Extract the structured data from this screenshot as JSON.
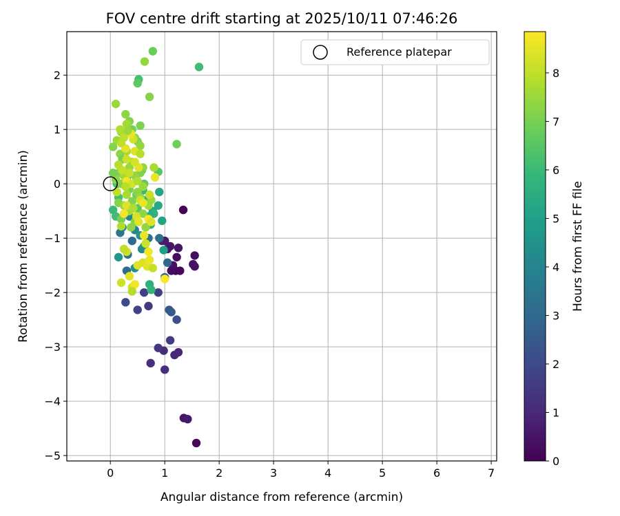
{
  "chart_data": {
    "type": "scatter",
    "title": "FOV centre drift starting at 2025/10/11 07:46:26",
    "xlabel": "Angular distance from reference (arcmin)",
    "ylabel": "Rotation from reference (arcmin)",
    "xlim": [
      -0.8,
      7.1
    ],
    "ylim": [
      -5.1,
      2.8
    ],
    "xticks": [
      0,
      1,
      2,
      3,
      4,
      5,
      6,
      7
    ],
    "yticks": [
      -5,
      -4,
      -3,
      -2,
      -1,
      0,
      1,
      2
    ],
    "grid": true,
    "legend": {
      "position": "top-right",
      "label": "Reference platepar"
    },
    "reference_point": {
      "x": 0,
      "y": 0
    },
    "colorbar": {
      "label": "Hours from first FF file",
      "range": [
        0,
        8.85
      ],
      "ticks": [
        0,
        1,
        2,
        3,
        4,
        5,
        6,
        7,
        8
      ],
      "colormap": "viridis"
    },
    "colors": {
      "viridis": [
        "#440154",
        "#482878",
        "#3e4989",
        "#31688e",
        "#26828e",
        "#1f9e89",
        "#35b779",
        "#6ece58",
        "#b5de2b",
        "#fde725"
      ]
    },
    "points": [
      [
        1.58,
        -4.77,
        0.2
      ],
      [
        1.35,
        -4.31,
        0.5
      ],
      [
        1.42,
        -4.33,
        0.6
      ],
      [
        1.34,
        -0.48,
        0.1
      ],
      [
        1.55,
        -1.32,
        0.3
      ],
      [
        1.52,
        -1.48,
        0.4
      ],
      [
        1.55,
        -1.52,
        0.4
      ],
      [
        1.25,
        -1.18,
        0.5
      ],
      [
        1.22,
        -1.35,
        0.3
      ],
      [
        1.28,
        -1.6,
        0.2
      ],
      [
        1.2,
        -1.6,
        0.2
      ],
      [
        1.1,
        -1.15,
        0.6
      ],
      [
        1.0,
        -1.05,
        0.6
      ],
      [
        0.95,
        -1.05,
        0.7
      ],
      [
        1.05,
        -1.2,
        0.5
      ],
      [
        1.15,
        -1.5,
        0.4
      ],
      [
        1.12,
        -1.6,
        0.3
      ],
      [
        1.25,
        -3.1,
        0.9
      ],
      [
        1.18,
        -3.15,
        1.0
      ],
      [
        1.0,
        -3.42,
        1.2
      ],
      [
        0.98,
        -3.07,
        1.1
      ],
      [
        0.88,
        -3.02,
        1.4
      ],
      [
        0.74,
        -3.3,
        1.2
      ],
      [
        1.1,
        -2.88,
        1.6
      ],
      [
        0.88,
        -2.0,
        1.7
      ],
      [
        0.7,
        -2.25,
        1.5
      ],
      [
        0.62,
        -2.0,
        1.7
      ],
      [
        0.5,
        -2.32,
        1.8
      ],
      [
        0.28,
        -2.18,
        2.0
      ],
      [
        1.22,
        -2.5,
        2.2
      ],
      [
        1.08,
        -2.32,
        2.4
      ],
      [
        1.12,
        -2.36,
        2.5
      ],
      [
        1.0,
        -1.72,
        2.7
      ],
      [
        1.05,
        -1.45,
        3.0
      ],
      [
        0.9,
        -1.0,
        3.2
      ],
      [
        0.7,
        -1.0,
        3.3
      ],
      [
        0.4,
        -1.05,
        3.0
      ],
      [
        0.3,
        -1.6,
        3.1
      ],
      [
        0.32,
        -1.3,
        3.4
      ],
      [
        0.18,
        -0.9,
        3.5
      ],
      [
        0.22,
        -0.8,
        3.8
      ],
      [
        0.45,
        -0.85,
        4.0
      ],
      [
        0.35,
        -0.6,
        4.1
      ],
      [
        0.58,
        -1.2,
        4.2
      ],
      [
        0.45,
        -1.55,
        4.4
      ],
      [
        0.62,
        -1.15,
        4.5
      ],
      [
        0.55,
        -0.95,
        4.6
      ],
      [
        0.15,
        -1.35,
        4.7
      ],
      [
        0.98,
        -1.22,
        4.9
      ],
      [
        0.95,
        -0.68,
        5.1
      ],
      [
        0.9,
        -0.15,
        5.2
      ],
      [
        0.88,
        -0.4,
        5.3
      ],
      [
        0.78,
        -0.5,
        5.4
      ],
      [
        0.7,
        -0.6,
        5.5
      ],
      [
        0.74,
        -0.75,
        5.6
      ],
      [
        0.8,
        -0.55,
        5.7
      ],
      [
        0.65,
        -0.3,
        5.8
      ],
      [
        0.6,
        -0.12,
        5.9
      ],
      [
        0.72,
        -1.85,
        5.6
      ],
      [
        0.75,
        -1.95,
        5.8
      ],
      [
        0.05,
        -0.48,
        6.0
      ],
      [
        0.1,
        -0.6,
        6.1
      ],
      [
        0.15,
        -0.25,
        6.2
      ],
      [
        0.12,
        0.0,
        6.3
      ],
      [
        0.3,
        0.1,
        6.4
      ],
      [
        0.5,
        -0.45,
        6.5
      ],
      [
        0.62,
        0.0,
        6.6
      ],
      [
        0.58,
        0.25,
        6.7
      ],
      [
        0.48,
        -0.2,
        6.8
      ],
      [
        0.52,
        1.92,
        6.2
      ],
      [
        0.78,
        2.44,
        6.8
      ],
      [
        1.63,
        2.15,
        6.1
      ],
      [
        0.5,
        1.85,
        6.6
      ],
      [
        0.88,
        0.22,
        6.5
      ],
      [
        1.22,
        0.73,
        6.9
      ],
      [
        0.72,
        1.6,
        7.2
      ],
      [
        0.63,
        2.25,
        7.4
      ],
      [
        0.1,
        1.47,
        7.5
      ],
      [
        0.28,
        1.28,
        7.3
      ],
      [
        0.55,
        1.07,
        7.1
      ],
      [
        0.35,
        1.15,
        7.2
      ],
      [
        0.3,
        1.1,
        7.6
      ],
      [
        0.4,
        1.0,
        7.0
      ],
      [
        0.2,
        0.95,
        7.4
      ],
      [
        0.25,
        0.9,
        7.7
      ],
      [
        0.05,
        0.68,
        7.2
      ],
      [
        0.12,
        0.8,
        7.5
      ],
      [
        0.45,
        0.85,
        7.3
      ],
      [
        0.5,
        0.78,
        7.1
      ],
      [
        0.55,
        0.7,
        7.4
      ],
      [
        0.3,
        0.6,
        7.6
      ],
      [
        0.18,
        0.55,
        7.3
      ],
      [
        0.22,
        0.45,
        7.0
      ],
      [
        0.4,
        0.4,
        7.2
      ],
      [
        0.35,
        0.3,
        7.5
      ],
      [
        0.6,
        0.3,
        7.4
      ],
      [
        0.55,
        0.2,
        7.1
      ],
      [
        0.15,
        0.2,
        7.2
      ],
      [
        0.05,
        0.2,
        7.0
      ],
      [
        0.1,
        0.08,
        7.3
      ],
      [
        0.25,
        0.15,
        7.6
      ],
      [
        0.45,
        0.15,
        7.4
      ],
      [
        0.2,
        0.0,
        7.2
      ],
      [
        0.35,
        -0.1,
        7.0
      ],
      [
        0.5,
        -0.15,
        7.3
      ],
      [
        0.6,
        -0.05,
        7.5
      ],
      [
        0.3,
        -0.2,
        7.7
      ],
      [
        0.15,
        -0.35,
        7.2
      ],
      [
        0.25,
        -0.4,
        7.5
      ],
      [
        0.4,
        -0.32,
        7.1
      ],
      [
        0.55,
        -0.25,
        7.4
      ],
      [
        0.35,
        -0.5,
        7.6
      ],
      [
        0.6,
        -0.55,
        7.3
      ],
      [
        0.2,
        -0.65,
        7.0
      ],
      [
        0.45,
        -0.7,
        7.2
      ],
      [
        0.7,
        -0.4,
        7.6
      ],
      [
        0.65,
        -0.8,
        7.4
      ],
      [
        0.8,
        0.3,
        7.7
      ],
      [
        0.75,
        -0.3,
        7.5
      ],
      [
        0.38,
        -0.8,
        7.3
      ],
      [
        0.2,
        -0.78,
        7.8
      ],
      [
        0.25,
        0.85,
        8.0
      ],
      [
        0.3,
        0.45,
        8.2
      ],
      [
        0.42,
        0.82,
        8.3
      ],
      [
        0.38,
        0.92,
        8.6
      ],
      [
        0.45,
        0.6,
        8.4
      ],
      [
        0.28,
        0.65,
        8.5
      ],
      [
        0.22,
        0.25,
        8.1
      ],
      [
        0.3,
        0.05,
        8.7
      ],
      [
        0.4,
        0.0,
        8.3
      ],
      [
        0.52,
        0.3,
        8.5
      ],
      [
        0.55,
        -0.3,
        8.2
      ],
      [
        0.6,
        -0.35,
        8.6
      ],
      [
        0.3,
        -0.4,
        8.4
      ],
      [
        0.25,
        -0.55,
        8.7
      ],
      [
        0.48,
        -0.6,
        8.3
      ],
      [
        0.52,
        -0.7,
        8.5
      ],
      [
        0.72,
        -0.2,
        8.1
      ],
      [
        0.7,
        -0.65,
        8.8
      ],
      [
        0.75,
        -0.7,
        8.4
      ],
      [
        0.62,
        -0.95,
        8.6
      ],
      [
        0.65,
        -1.1,
        8.2
      ],
      [
        0.7,
        -1.25,
        8.7
      ],
      [
        0.6,
        -1.45,
        8.3
      ],
      [
        0.68,
        -1.52,
        8.5
      ],
      [
        0.72,
        -1.4,
        8.6
      ],
      [
        0.78,
        -1.55,
        8.1
      ],
      [
        0.5,
        -1.5,
        8.4
      ],
      [
        0.3,
        -1.25,
        8.2
      ],
      [
        0.25,
        -1.2,
        8.0
      ],
      [
        0.35,
        -1.7,
        8.5
      ],
      [
        0.4,
        -1.9,
        8.3
      ],
      [
        0.45,
        -1.85,
        8.7
      ],
      [
        0.2,
        -1.82,
        8.2
      ],
      [
        1.0,
        -1.75,
        8.8
      ],
      [
        0.4,
        -1.98,
        7.9
      ],
      [
        0.82,
        0.12,
        8.6
      ],
      [
        0.45,
        0.4,
        8.3
      ],
      [
        0.5,
        0.05,
        7.8
      ],
      [
        0.35,
        0.2,
        8.1
      ],
      [
        0.15,
        0.35,
        7.9
      ],
      [
        0.2,
        0.75,
        8.0
      ],
      [
        0.18,
        1.0,
        7.8
      ],
      [
        0.32,
        0.98,
        7.5
      ],
      [
        0.28,
        -0.05,
        7.9
      ],
      [
        0.42,
        -0.45,
        7.8
      ],
      [
        0.12,
        -0.15,
        8.0
      ],
      [
        0.55,
        0.55,
        7.9
      ]
    ]
  }
}
